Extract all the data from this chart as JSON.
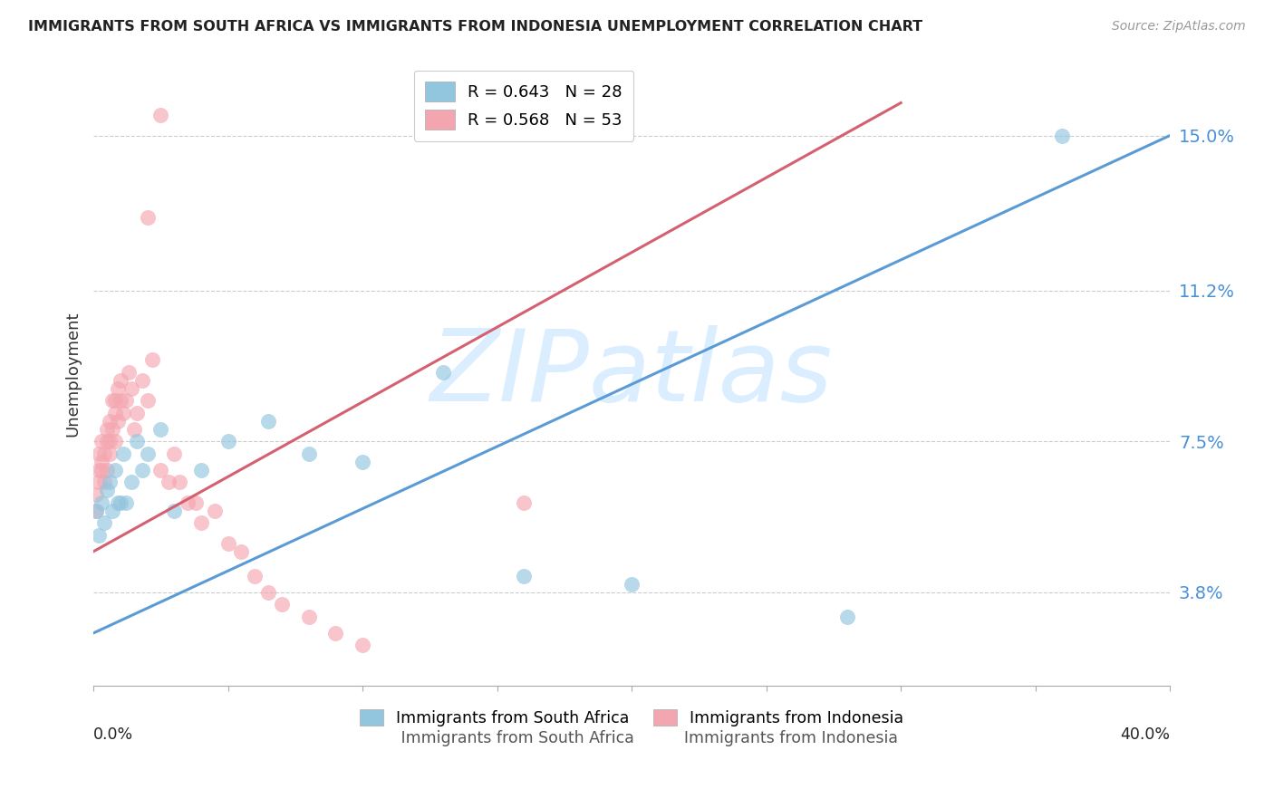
{
  "title": "IMMIGRANTS FROM SOUTH AFRICA VS IMMIGRANTS FROM INDONESIA UNEMPLOYMENT CORRELATION CHART",
  "source": "Source: ZipAtlas.com",
  "ylabel": "Unemployment",
  "ytick_labels": [
    "3.8%",
    "7.5%",
    "11.2%",
    "15.0%"
  ],
  "ytick_values": [
    0.038,
    0.075,
    0.112,
    0.15
  ],
  "xlim": [
    0.0,
    0.4
  ],
  "ylim": [
    0.015,
    0.168
  ],
  "color_sa": "#92c5de",
  "color_id": "#f4a6b0",
  "color_sa_line": "#5b9bd5",
  "color_id_line": "#d46070",
  "watermark": "ZIPatlas",
  "watermark_color": "#daeeff",
  "sa_x": [
    0.001,
    0.002,
    0.003,
    0.004,
    0.005,
    0.006,
    0.007,
    0.008,
    0.009,
    0.01,
    0.011,
    0.012,
    0.014,
    0.016,
    0.018,
    0.02,
    0.025,
    0.03,
    0.04,
    0.05,
    0.065,
    0.08,
    0.1,
    0.13,
    0.16,
    0.2,
    0.28,
    0.36
  ],
  "sa_y": [
    0.058,
    0.052,
    0.06,
    0.055,
    0.063,
    0.065,
    0.058,
    0.068,
    0.06,
    0.06,
    0.072,
    0.06,
    0.065,
    0.075,
    0.068,
    0.072,
    0.078,
    0.058,
    0.068,
    0.075,
    0.08,
    0.072,
    0.07,
    0.092,
    0.042,
    0.04,
    0.032,
    0.15
  ],
  "id_x": [
    0.001,
    0.001,
    0.002,
    0.002,
    0.002,
    0.003,
    0.003,
    0.003,
    0.004,
    0.004,
    0.005,
    0.005,
    0.005,
    0.006,
    0.006,
    0.006,
    0.007,
    0.007,
    0.008,
    0.008,
    0.008,
    0.009,
    0.009,
    0.01,
    0.01,
    0.011,
    0.012,
    0.013,
    0.014,
    0.015,
    0.016,
    0.018,
    0.02,
    0.022,
    0.025,
    0.028,
    0.03,
    0.032,
    0.035,
    0.038,
    0.04,
    0.045,
    0.05,
    0.055,
    0.06,
    0.065,
    0.07,
    0.08,
    0.09,
    0.1,
    0.02,
    0.025,
    0.16
  ],
  "id_y": [
    0.062,
    0.058,
    0.065,
    0.072,
    0.068,
    0.075,
    0.068,
    0.07,
    0.072,
    0.065,
    0.078,
    0.068,
    0.075,
    0.08,
    0.072,
    0.075,
    0.085,
    0.078,
    0.082,
    0.075,
    0.085,
    0.088,
    0.08,
    0.085,
    0.09,
    0.082,
    0.085,
    0.092,
    0.088,
    0.078,
    0.082,
    0.09,
    0.085,
    0.095,
    0.068,
    0.065,
    0.072,
    0.065,
    0.06,
    0.06,
    0.055,
    0.058,
    0.05,
    0.048,
    0.042,
    0.038,
    0.035,
    0.032,
    0.028,
    0.025,
    0.13,
    0.155,
    0.06
  ],
  "sa_line_x0": 0.0,
  "sa_line_x1": 0.4,
  "sa_line_y0": 0.028,
  "sa_line_y1": 0.15,
  "id_line_x0": 0.0,
  "id_line_x1": 0.3,
  "id_line_y0": 0.048,
  "id_line_y1": 0.158
}
